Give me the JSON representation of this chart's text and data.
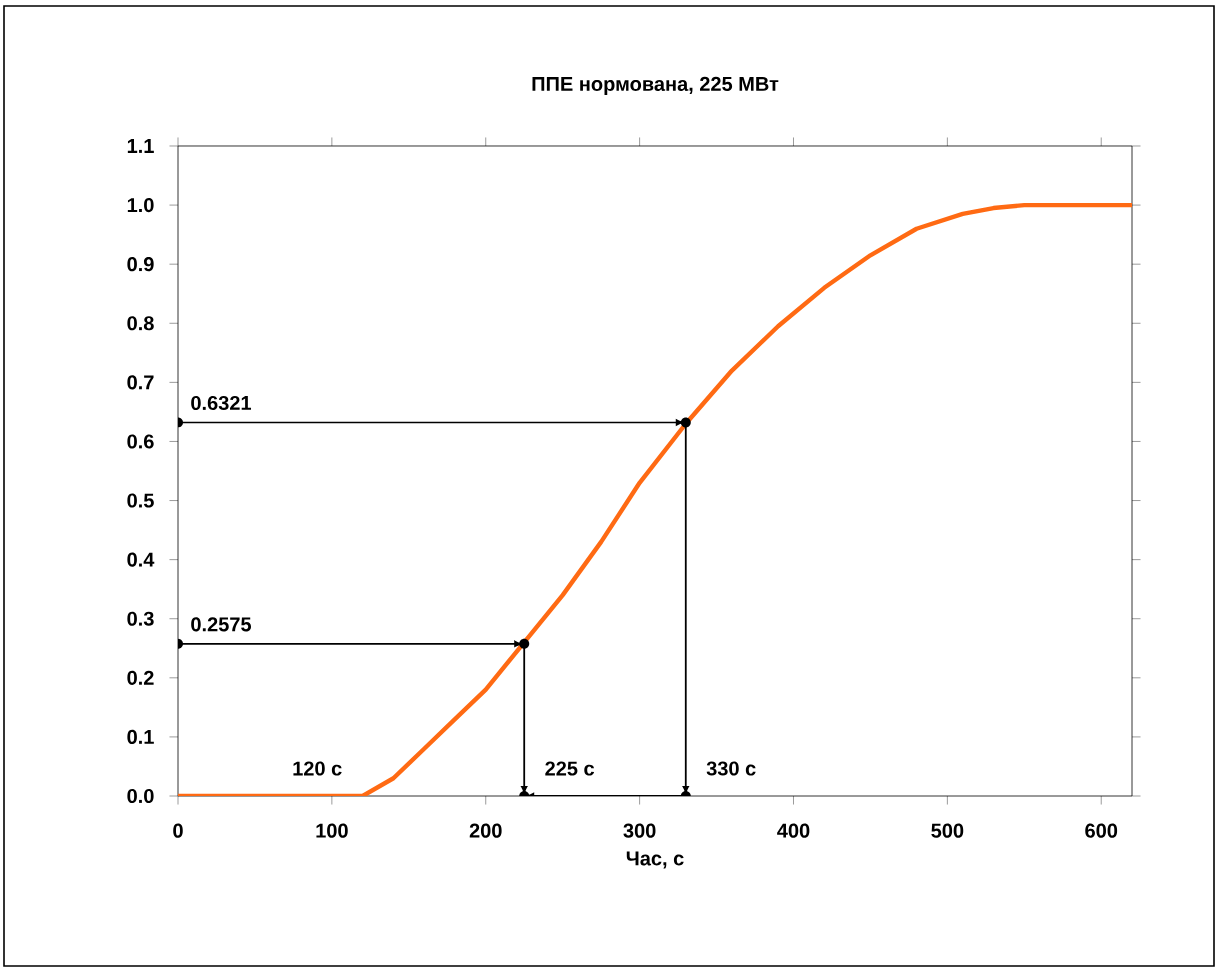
{
  "chart_data": {
    "type": "line",
    "title": "ППЕ нормована, 225 МВт",
    "xlabel": "Час, с",
    "x": [
      0,
      60,
      120,
      140,
      160,
      180,
      200,
      225,
      250,
      275,
      300,
      330,
      360,
      390,
      420,
      450,
      480,
      510,
      530,
      550,
      580,
      620
    ],
    "series": [
      {
        "color": "#ff6a13",
        "values": [
          0,
          0,
          0,
          0.03,
          0.08,
          0.13,
          0.18,
          0.26,
          0.34,
          0.43,
          0.53,
          0.63,
          0.72,
          0.795,
          0.86,
          0.915,
          0.96,
          0.985,
          0.995,
          1.0,
          1.0,
          1.0
        ]
      }
    ],
    "xlim": [
      0,
      620
    ],
    "xticks": [
      0,
      100,
      200,
      300,
      400,
      500,
      600
    ],
    "ylim": [
      0,
      1.1
    ],
    "yticks": [
      {
        "value": 0,
        "label": "0.0"
      },
      0.1,
      0.2,
      0.3,
      0.4,
      0.5,
      0.6,
      0.7,
      0.8,
      0.9,
      {
        "value": 1,
        "label": "1.0"
      },
      1.1
    ],
    "grid": false,
    "marker": "none",
    "line_style": "solid",
    "annotations": [
      {
        "text": "0.6321",
        "x": 330,
        "y": 0.6321
      },
      {
        "text": "0.2575",
        "x": 225,
        "y": 0.2575
      },
      {
        "text": "120 с",
        "x": 120,
        "y": 0
      },
      {
        "text": "225 с",
        "x": 225,
        "y": 0
      },
      {
        "text": "330 с",
        "x": 330,
        "y": 0
      }
    ]
  }
}
